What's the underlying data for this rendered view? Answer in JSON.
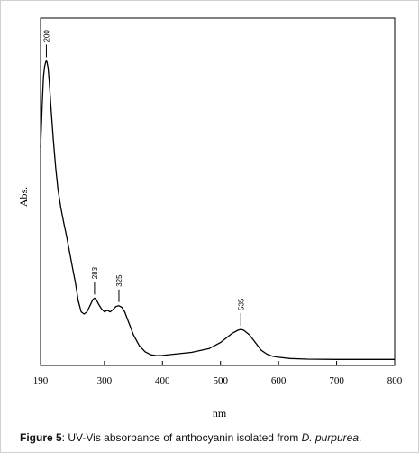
{
  "chart_data": {
    "type": "line",
    "title": "",
    "xlabel": "nm",
    "ylabel": "Abs.",
    "xlim": [
      190,
      800
    ],
    "ylim": [
      0,
      1
    ],
    "xticks": [
      190,
      300,
      400,
      500,
      600,
      700,
      800
    ],
    "grid": false,
    "legend": "none",
    "line_color": "#000000",
    "series": [
      {
        "x": [
          190,
          191,
          193,
          195,
          197,
          199,
          200,
          201,
          203,
          205,
          208,
          212,
          216,
          220,
          225,
          230,
          235,
          240,
          245,
          250,
          255,
          260,
          265,
          270,
          275,
          280,
          283,
          286,
          290,
          295,
          300,
          305,
          310,
          315,
          320,
          325,
          330,
          335,
          340,
          345,
          350,
          360,
          370,
          380,
          390,
          400,
          420,
          450,
          480,
          500,
          510,
          520,
          530,
          535,
          540,
          550,
          560,
          570,
          580,
          590,
          600,
          620,
          650,
          700,
          750,
          800
        ],
        "y": [
          0.695,
          0.74,
          0.84,
          0.925,
          0.96,
          0.975,
          0.978,
          0.975,
          0.955,
          0.91,
          0.825,
          0.72,
          0.63,
          0.56,
          0.5,
          0.45,
          0.405,
          0.355,
          0.305,
          0.255,
          0.195,
          0.16,
          0.153,
          0.16,
          0.18,
          0.2,
          0.205,
          0.2,
          0.185,
          0.17,
          0.16,
          0.165,
          0.16,
          0.168,
          0.178,
          0.18,
          0.175,
          0.16,
          0.135,
          0.11,
          0.085,
          0.05,
          0.03,
          0.02,
          0.017,
          0.018,
          0.022,
          0.028,
          0.04,
          0.06,
          0.075,
          0.09,
          0.1,
          0.103,
          0.1,
          0.085,
          0.06,
          0.035,
          0.022,
          0.015,
          0.012,
          0.008,
          0.006,
          0.005,
          0.005,
          0.005
        ]
      }
    ],
    "peak_labels": [
      {
        "text": "200",
        "x": 200,
        "y": 0.978
      },
      {
        "text": "283",
        "x": 283,
        "y": 0.205
      },
      {
        "text": "325",
        "x": 325,
        "y": 0.18
      },
      {
        "text": "535",
        "x": 535,
        "y": 0.103
      }
    ]
  },
  "caption": {
    "label": "Figure 5",
    "text_before": ": UV-Vis absorbance of anthocyanin isolated from ",
    "species": "D. purpurea",
    "text_after": "."
  }
}
